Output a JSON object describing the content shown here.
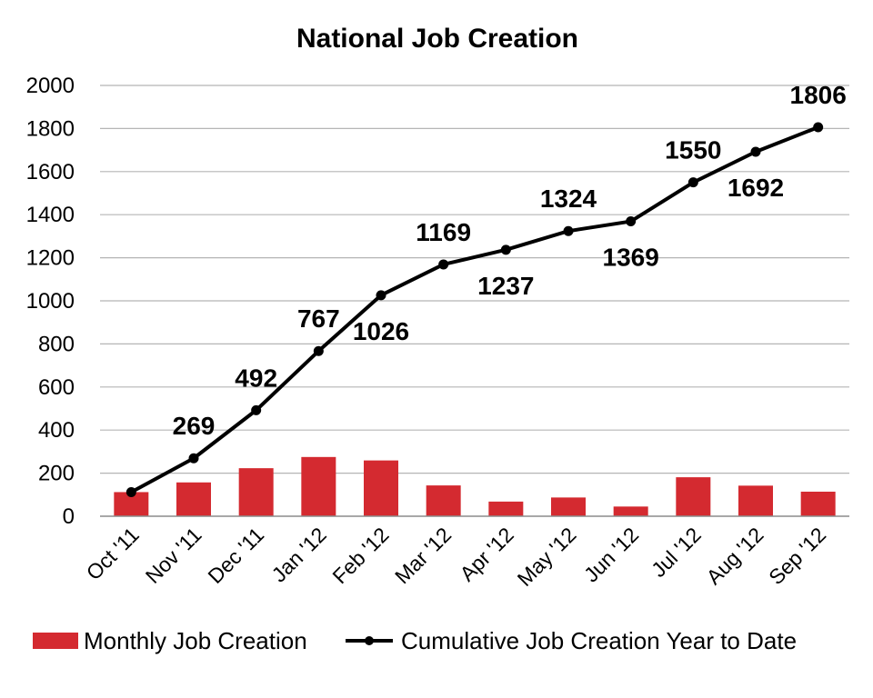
{
  "chart_data": {
    "type": "bar+line",
    "title": "National Job Creation",
    "categories": [
      "Oct '11",
      "Nov '11",
      "Dec '11",
      "Jan '12",
      "Feb '12",
      "Mar '12",
      "Apr '12",
      "May '12",
      "Jun '12",
      "Jul '12",
      "Aug '12",
      "Sep '12"
    ],
    "series": [
      {
        "name": "Monthly Job Creation",
        "type": "bar",
        "color": "#d42a30",
        "values": [
          112,
          157,
          223,
          275,
          259,
          143,
          68,
          87,
          45,
          181,
          142,
          114
        ]
      },
      {
        "name": "Cumulative Job Creation Year to Date",
        "type": "line",
        "color": "#000000",
        "values": [
          112,
          269,
          492,
          767,
          1026,
          1169,
          1237,
          1324,
          1369,
          1550,
          1692,
          1806
        ],
        "data_labels": [
          "",
          "269",
          "492",
          "767",
          "1026",
          "1169",
          "1237",
          "1324",
          "1369",
          "1550",
          "1692",
          "1806"
        ],
        "label_positions": [
          "",
          "above",
          "above",
          "above",
          "below",
          "above",
          "below",
          "above",
          "below",
          "above",
          "below",
          "above"
        ]
      }
    ],
    "yticks": [
      "0",
      "200",
      "400",
      "600",
      "800",
      "1000",
      "1200",
      "1400",
      "1600",
      "1800",
      "2000"
    ],
    "ylim": [
      0,
      2000
    ],
    "xlabel": "",
    "ylabel": "",
    "grid": true,
    "legend_position": "bottom"
  }
}
